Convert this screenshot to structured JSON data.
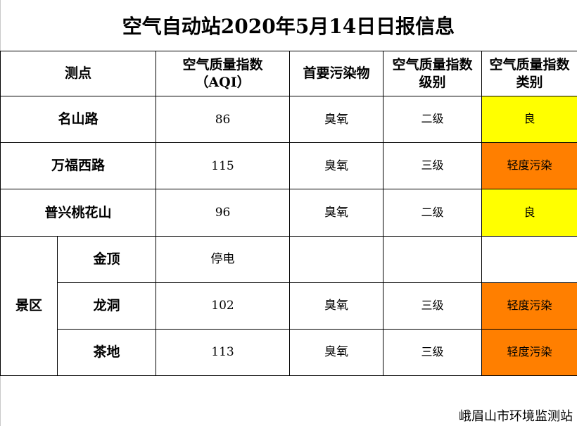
{
  "title": "空气自动站2020年5月14日日报信息",
  "headers": {
    "station": "测点",
    "aqi_line1": "空气质量指数",
    "aqi_line2": "（AQI）",
    "pollutant": "首要污染物",
    "level_line1": "空气质量指数",
    "level_line2": "级别",
    "category_line1": "空气质量指数",
    "category_line2": "类别"
  },
  "rows": [
    {
      "name": "名山路",
      "aqi": "86",
      "pollutant": "臭氧",
      "level": "二级",
      "category": "良",
      "color": "#ffff00"
    },
    {
      "name": "万福西路",
      "aqi": "115",
      "pollutant": "臭氧",
      "level": "三级",
      "category": "轻度污染",
      "color": "#ff7f00"
    },
    {
      "name": "普兴桃花山",
      "aqi": "96",
      "pollutant": "臭氧",
      "level": "二级",
      "category": "良",
      "color": "#ffff00"
    }
  ],
  "scenic": {
    "group_label": "景区",
    "rows": [
      {
        "name": "金顶",
        "aqi": "停电",
        "pollutant": "",
        "level": "",
        "category": "",
        "color": ""
      },
      {
        "name": "龙洞",
        "aqi": "102",
        "pollutant": "臭氧",
        "level": "三级",
        "category": "轻度污染",
        "color": "#ff7f00"
      },
      {
        "name": "茶地",
        "aqi": "113",
        "pollutant": "臭氧",
        "level": "三级",
        "category": "轻度污染",
        "color": "#ff7f00"
      }
    ]
  },
  "footer": "峨眉山市环境监测站"
}
